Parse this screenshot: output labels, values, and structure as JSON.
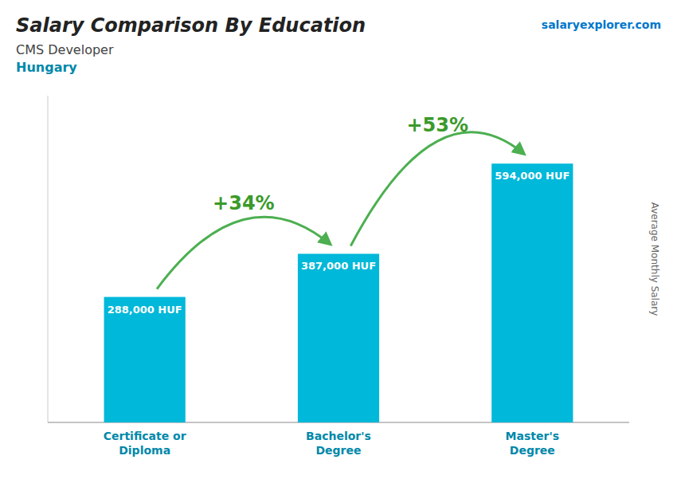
{
  "chart_data": {
    "type": "bar",
    "title": "Salary Comparison By Education",
    "subtitle": [
      "CMS Developer",
      "Hungary"
    ],
    "y_label": "Average Monthly Salary",
    "categories": [
      "Certificate or\nDiploma",
      "Bachelor's\nDegree",
      "Master's\nDegree"
    ],
    "values": [
      288000,
      387000,
      594000
    ],
    "value_labels": [
      "288,000 HUF",
      "387,000 HUF",
      "594,000 HUF"
    ],
    "data_labels": true,
    "annotations": [
      "+34%",
      "+53%",
      "salaryexplorer.com"
    ],
    "color": "#00b8d9",
    "ylim": [
      0,
      750000
    ],
    "tick_labels": false,
    "grid": false
  }
}
